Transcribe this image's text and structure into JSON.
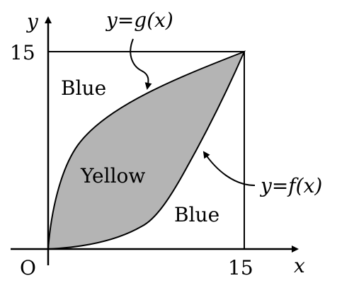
{
  "diagram": {
    "axis_x_label": "x",
    "axis_y_label": "y",
    "origin_label": "O",
    "tick_x": "15",
    "tick_y": "15",
    "region_top_left": "Blue",
    "region_middle": "Yellow",
    "region_bottom_right": "Blue",
    "curve_upper_label": "y=g(x)",
    "curve_lower_label": "y=f(x)",
    "colors": {
      "lens_fill": "#b4b4b4",
      "stroke": "#000000",
      "background": "#ffffff"
    }
  }
}
